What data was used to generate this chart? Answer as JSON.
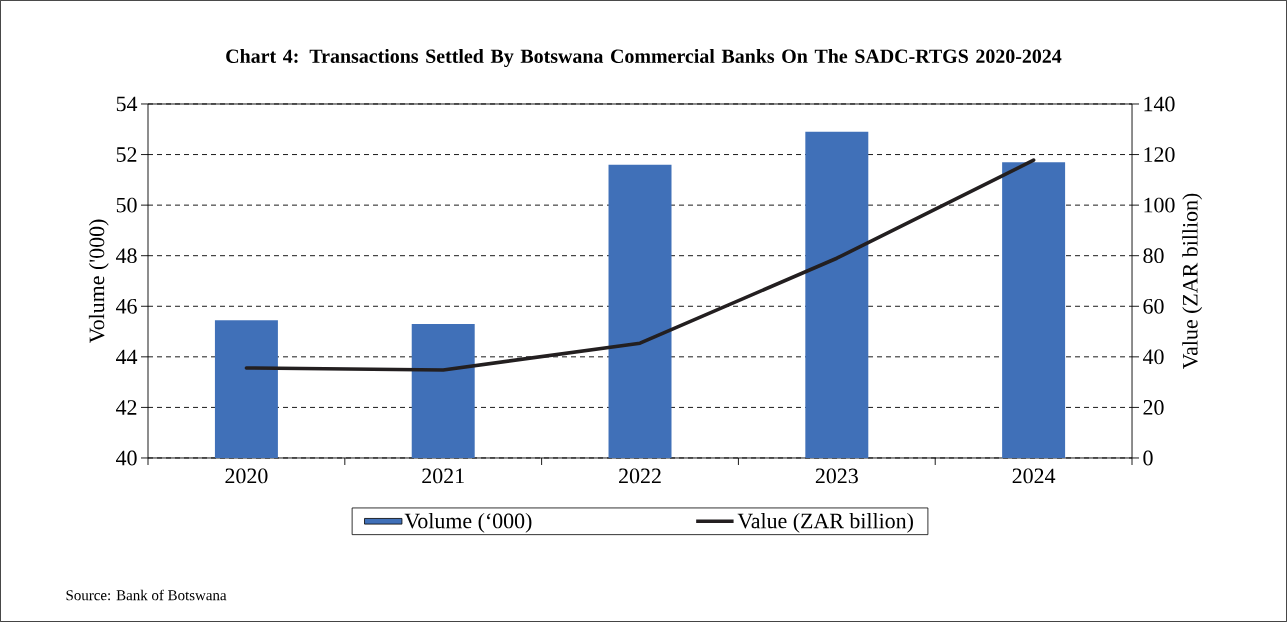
{
  "chart_data": {
    "type": "bar",
    "title": "Chart 4: Transactions Settled By Botswana Commercial Banks On The SADC-RTGS 2020-2024",
    "categories": [
      "2020",
      "2021",
      "2022",
      "2023",
      "2024"
    ],
    "series": [
      {
        "name": "Volume (‘000)",
        "color": "#4070b8",
        "values": [
          45.45,
          45.3,
          51.6,
          52.9,
          51.7
        ]
      },
      {
        "name": "Value (ZAR billion)",
        "type": "line",
        "axis": "y2",
        "color": "#231f20",
        "values": [
          35.6,
          34.8,
          45.4,
          79,
          117.8
        ]
      }
    ],
    "ylabel": "Volume ('000)",
    "y2label": "Value (ZAR billion)",
    "ylim": [
      40,
      54
    ],
    "yticks": [
      40,
      42,
      44,
      46,
      48,
      50,
      52,
      54
    ],
    "y2lim": [
      0,
      140
    ],
    "y2ticks": [
      0,
      20,
      40,
      60,
      80,
      100,
      120,
      140
    ],
    "grid": "y",
    "legend": "bottom",
    "annotations": [
      "Source: Bank of Botswana"
    ]
  }
}
